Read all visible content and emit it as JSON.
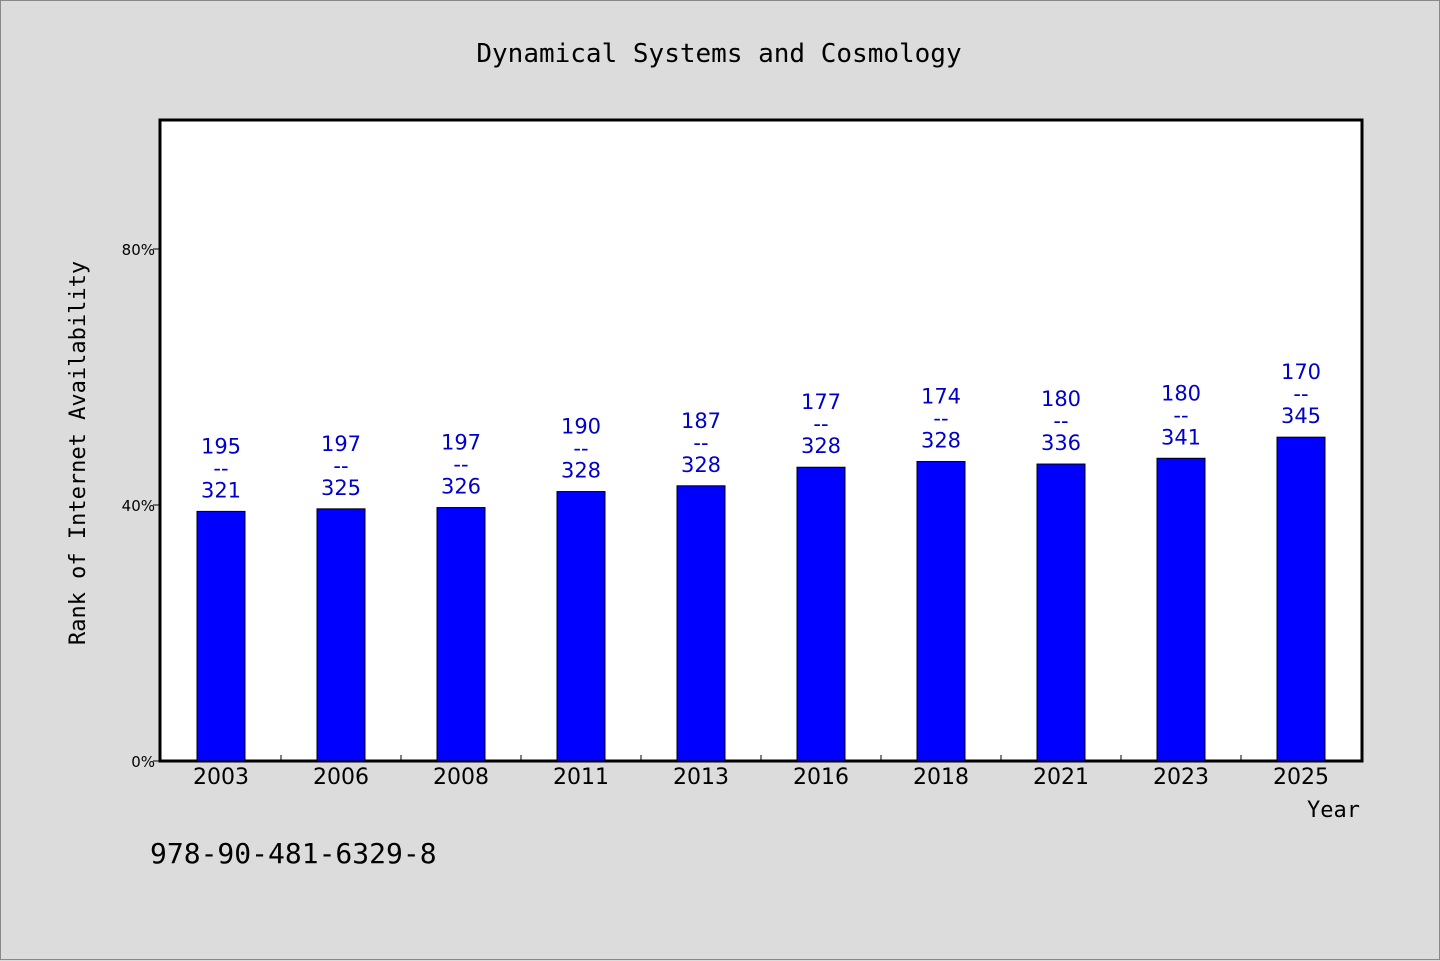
{
  "chart_data": {
    "type": "bar",
    "title": "Dynamical Systems and Cosmology",
    "xlabel": "Year",
    "ylabel": "Rank of Internet Availability",
    "y_unit": "percent",
    "ylim": [
      0,
      100
    ],
    "y_ticks": [
      {
        "value": 0,
        "label": "0%"
      },
      {
        "value": 40,
        "label": "40%"
      },
      {
        "value": 80,
        "label": "80%"
      }
    ],
    "categories": [
      "2003",
      "2006",
      "2008",
      "2011",
      "2013",
      "2016",
      "2018",
      "2021",
      "2023",
      "2025"
    ],
    "values": [
      39.0,
      39.4,
      39.6,
      42.1,
      43.0,
      45.9,
      46.8,
      46.4,
      47.3,
      50.6
    ],
    "data_labels": [
      [
        "195",
        "--",
        "321"
      ],
      [
        "197",
        "--",
        "325"
      ],
      [
        "197",
        "--",
        "326"
      ],
      [
        "190",
        "--",
        "328"
      ],
      [
        "187",
        "--",
        "328"
      ],
      [
        "177",
        "--",
        "328"
      ],
      [
        "174",
        "--",
        "328"
      ],
      [
        "180",
        "--",
        "336"
      ],
      [
        "180",
        "--",
        "341"
      ],
      [
        "170",
        "--",
        "345"
      ]
    ],
    "bar_color": "#0000ff",
    "label_color": "#0000cc",
    "grid": false
  },
  "footer": {
    "isbn": "978-90-481-6329-8"
  }
}
